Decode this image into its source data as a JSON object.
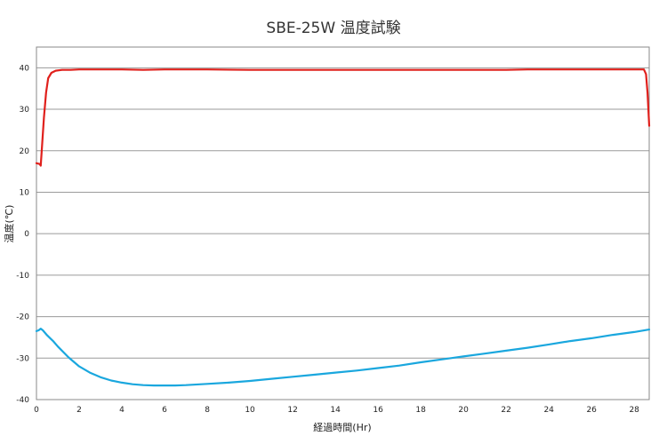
{
  "chart_data": {
    "type": "line",
    "title": "SBE-25W 温度試験",
    "xlabel": "経過時間(Hr)",
    "ylabel": "温度(℃)",
    "xlim": [
      0,
      28.7
    ],
    "ylim": [
      -40,
      45
    ],
    "x_ticks": [
      0,
      2,
      4,
      6,
      8,
      10,
      12,
      14,
      16,
      18,
      20,
      22,
      24,
      26,
      28
    ],
    "y_ticks": [
      -40,
      -30,
      -20,
      -10,
      0,
      10,
      20,
      30,
      40
    ],
    "grid": "horizontal",
    "legend": "none",
    "series": [
      {
        "color": "#e0201c",
        "x": [
          0,
          0.15,
          0.2,
          0.35,
          0.45,
          0.55,
          0.7,
          0.9,
          1.2,
          1.6,
          2.0,
          3.0,
          4.0,
          5.0,
          6.0,
          8.0,
          10.0,
          12.0,
          14.0,
          16.0,
          18.0,
          20.0,
          22.0,
          23.0,
          24.0,
          26.0,
          28.0,
          28.45,
          28.55,
          28.62,
          28.7
        ],
        "values": [
          17.0,
          16.8,
          16.4,
          28.0,
          34.0,
          37.5,
          38.8,
          39.3,
          39.5,
          39.5,
          39.6,
          39.6,
          39.6,
          39.5,
          39.6,
          39.6,
          39.5,
          39.5,
          39.5,
          39.5,
          39.5,
          39.5,
          39.5,
          39.6,
          39.6,
          39.6,
          39.6,
          39.6,
          38.5,
          34.0,
          26.0
        ]
      },
      {
        "color": "#1aa7de",
        "x": [
          0,
          0.1,
          0.2,
          0.3,
          0.5,
          0.8,
          1.0,
          1.5,
          2.0,
          2.5,
          3.0,
          3.5,
          4.0,
          4.5,
          5.0,
          5.5,
          6.0,
          6.5,
          7.0,
          8.0,
          9.0,
          10.0,
          11.0,
          12.0,
          13.0,
          14.0,
          15.0,
          16.0,
          17.0,
          18.0,
          19.0,
          20.0,
          21.0,
          22.0,
          23.0,
          24.0,
          25.0,
          26.0,
          27.0,
          28.0,
          28.7
        ],
        "values": [
          -23.5,
          -23.3,
          -22.9,
          -23.3,
          -24.5,
          -26.0,
          -27.2,
          -29.8,
          -32.0,
          -33.5,
          -34.6,
          -35.4,
          -35.9,
          -36.3,
          -36.5,
          -36.6,
          -36.6,
          -36.6,
          -36.5,
          -36.2,
          -35.9,
          -35.5,
          -35.0,
          -34.5,
          -34.0,
          -33.5,
          -33.0,
          -32.4,
          -31.8,
          -31.0,
          -30.3,
          -29.6,
          -28.9,
          -28.2,
          -27.5,
          -26.7,
          -25.9,
          -25.2,
          -24.4,
          -23.7,
          -23.1
        ]
      }
    ]
  }
}
